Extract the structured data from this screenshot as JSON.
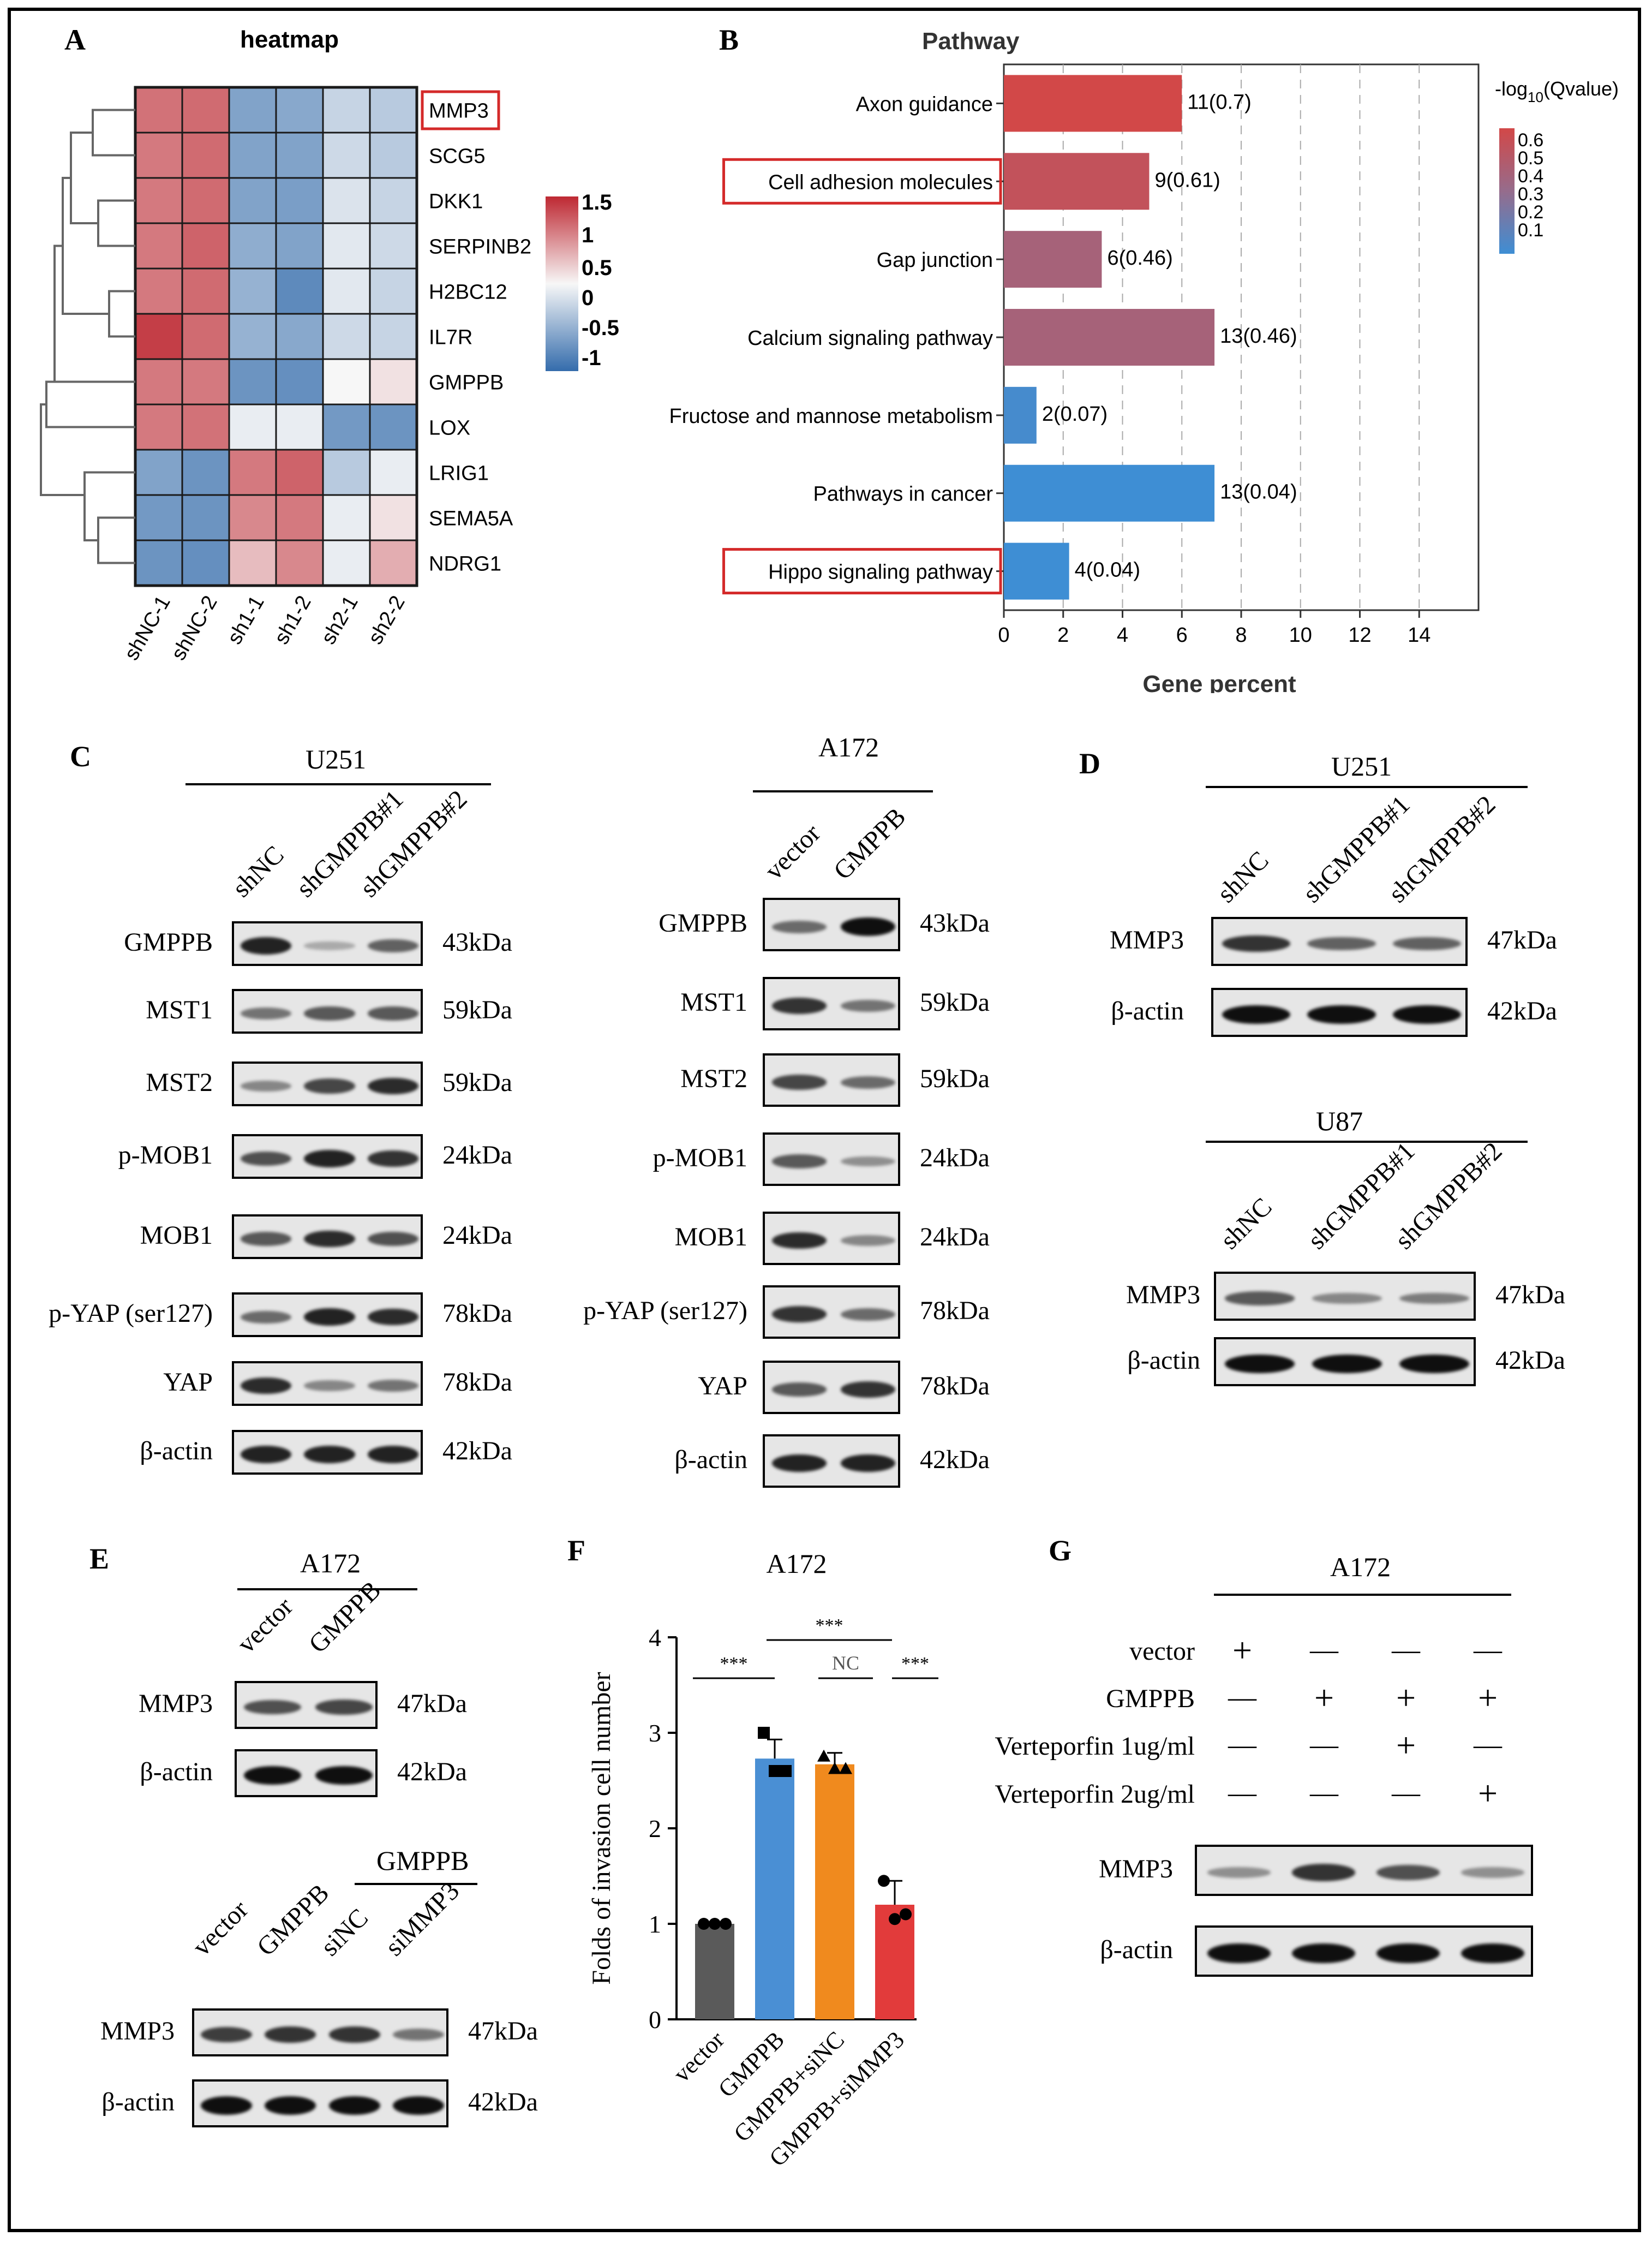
{
  "panels": {
    "A": {
      "letter": "A",
      "title": "heatmap",
      "genes": [
        "MMP3",
        "SCG5",
        "DKK1",
        "SERPINB2",
        "H2BC12",
        "IL7R",
        "GMPPB",
        "LOX",
        "LRIG1",
        "SEMA5A",
        "NDRG1"
      ],
      "samples": [
        "shNC-1",
        "shNC-2",
        "sh1-1",
        "sh1-2",
        "sh2-1",
        "sh2-2"
      ],
      "values": [
        [
          0.9,
          0.95,
          -0.85,
          -0.8,
          -0.35,
          -0.45
        ],
        [
          0.85,
          0.95,
          -0.85,
          -0.85,
          -0.3,
          -0.45
        ],
        [
          0.85,
          0.95,
          -0.85,
          -0.9,
          -0.2,
          -0.35
        ],
        [
          0.85,
          1.0,
          -0.75,
          -0.85,
          -0.15,
          -0.3
        ],
        [
          0.85,
          0.95,
          -0.7,
          -1.1,
          -0.15,
          -0.35
        ],
        [
          1.25,
          0.95,
          -0.7,
          -0.8,
          -0.3,
          -0.35
        ],
        [
          0.85,
          0.85,
          -1.0,
          -1.05,
          0.0,
          0.15
        ],
        [
          0.85,
          0.9,
          -0.1,
          -0.1,
          -0.95,
          -1.0
        ],
        [
          -0.85,
          -1.0,
          0.85,
          1.0,
          -0.45,
          -0.1
        ],
        [
          -0.95,
          -1.0,
          0.75,
          0.85,
          -0.1,
          0.15
        ],
        [
          -1.0,
          -1.05,
          0.4,
          0.75,
          -0.1,
          0.5
        ]
      ],
      "legend_ticks": [
        "1.5",
        "1",
        "0.5",
        "0",
        "-0.5",
        "-1"
      ],
      "highlight": "MMP3"
    },
    "B": {
      "letter": "B",
      "chart_data": {
        "type": "bar",
        "title": "Pathway",
        "xlabel": "Gene percent",
        "ylabel": "",
        "xlim": [
          0,
          16
        ],
        "xticks": [
          "0",
          "2",
          "4",
          "6",
          "8",
          "10",
          "12",
          "14"
        ],
        "categories": [
          "Axon guidance",
          "Cell adhesion molecules",
          "Gap junction",
          "Calcium signaling pathway",
          "Fructose and mannose metabolism",
          "Pathways in cancer",
          "Hippo signaling pathway"
        ],
        "values": [
          6.0,
          4.9,
          3.3,
          7.1,
          1.1,
          7.1,
          2.2
        ],
        "data_labels": [
          "11(0.7)",
          "9(0.61)",
          "6(0.46)",
          "13(0.46)",
          "2(0.07)",
          "13(0.04)",
          "4(0.04)"
        ],
        "qvalues": [
          0.7,
          0.61,
          0.46,
          0.46,
          0.07,
          0.04,
          0.04
        ],
        "highlighted": [
          "Cell adhesion molecules",
          "Hippo signaling pathway"
        ],
        "legend_title_prefix": "-log",
        "legend_title_sub": "10",
        "legend_title_suffix": "(Qvalue)",
        "legend_ticks": [
          "0.6",
          "0.5",
          "0.4",
          "0.3",
          "0.2",
          "0.1"
        ]
      }
    },
    "C": {
      "letter": "C",
      "left": {
        "cell": "U251",
        "lanes": [
          "shNC",
          "shGMPPB#1",
          "shGMPPB#2"
        ],
        "rows": [
          {
            "label": "GMPPB",
            "kda": "43kDa"
          },
          {
            "label": "MST1",
            "kda": "59kDa"
          },
          {
            "label": "MST2",
            "kda": "59kDa"
          },
          {
            "label": "p-MOB1",
            "kda": "24kDa"
          },
          {
            "label": "MOB1",
            "kda": "24kDa"
          },
          {
            "label": "p-YAP (ser127)",
            "kda": "78kDa"
          },
          {
            "label": "YAP",
            "kda": "78kDa"
          },
          {
            "label": "β-actin",
            "kda": "42kDa"
          }
        ]
      },
      "right": {
        "cell": "A172",
        "lanes": [
          "vector",
          "GMPPB"
        ],
        "rows": [
          {
            "label": "GMPPB",
            "kda": "43kDa"
          },
          {
            "label": "MST1",
            "kda": "59kDa"
          },
          {
            "label": "MST2",
            "kda": "59kDa"
          },
          {
            "label": "p-MOB1",
            "kda": "24kDa"
          },
          {
            "label": "MOB1",
            "kda": "24kDa"
          },
          {
            "label": "p-YAP (ser127)",
            "kda": "78kDa"
          },
          {
            "label": "YAP",
            "kda": "78kDa"
          },
          {
            "label": "β-actin",
            "kda": "42kDa"
          }
        ]
      }
    },
    "D": {
      "letter": "D",
      "top": {
        "cell": "U251",
        "lanes": [
          "shNC",
          "shGMPPB#1",
          "shGMPPB#2"
        ],
        "rows": [
          {
            "label": "MMP3",
            "kda": "47kDa"
          },
          {
            "label": "β-actin",
            "kda": "42kDa"
          }
        ]
      },
      "bottom": {
        "cell": "U87",
        "lanes": [
          "shNC",
          "shGMPPB#1",
          "shGMPPB#2"
        ],
        "rows": [
          {
            "label": "MMP3",
            "kda": "47kDa"
          },
          {
            "label": "β-actin",
            "kda": "42kDa"
          }
        ]
      }
    },
    "E": {
      "letter": "E",
      "top": {
        "cell": "A172",
        "lanes": [
          "vector",
          "GMPPB"
        ],
        "rows": [
          {
            "label": "MMP3",
            "kda": "47kDa"
          },
          {
            "label": "β-actin",
            "kda": "42kDa"
          }
        ]
      },
      "bottom": {
        "group": "GMPPB",
        "lanes": [
          "vector",
          "GMPPB",
          "siNC",
          "siMMP3"
        ],
        "rows": [
          {
            "label": "MMP3",
            "kda": "47kDa"
          },
          {
            "label": "β-actin",
            "kda": "42kDa"
          }
        ]
      }
    },
    "F": {
      "letter": "F",
      "chart_data": {
        "type": "bar",
        "title": "A172",
        "ylabel": "Folds of invasion cell number",
        "xlabel": "",
        "ylim": [
          0,
          4
        ],
        "yticks": [
          "0",
          "1",
          "2",
          "3",
          "4"
        ],
        "categories": [
          "vector",
          "GMPPB",
          "GMPPB+siNC",
          "GMPPB+siMMP3"
        ],
        "values": [
          1.0,
          2.73,
          2.67,
          1.2
        ],
        "errors": [
          0.0,
          0.2,
          0.12,
          0.25
        ],
        "points": [
          [
            1.0,
            1.0,
            1.0
          ],
          [
            3.0,
            2.6,
            2.6
          ],
          [
            2.75,
            2.62,
            2.62
          ],
          [
            1.45,
            1.05,
            1.1
          ]
        ],
        "colors": [
          "#5a5a5a",
          "#4a8fd4",
          "#f08a1e",
          "#e23b3b"
        ],
        "significance": [
          {
            "from": "vector",
            "to": "GMPPB",
            "label": "***"
          },
          {
            "from": "GMPPB",
            "to": "GMPPB+siNC",
            "label": "NC"
          },
          {
            "from": "GMPPB+siNC",
            "to": "GMPPB+siMMP3",
            "label": "***"
          },
          {
            "from": "GMPPB",
            "to": "GMPPB+siMMP3",
            "label": "***"
          }
        ]
      }
    },
    "G": {
      "letter": "G",
      "cell": "A172",
      "conditions": [
        {
          "label": "vector",
          "marks": [
            "+",
            "—",
            "—",
            "—"
          ]
        },
        {
          "label": "GMPPB",
          "marks": [
            "—",
            "+",
            "+",
            "+"
          ]
        },
        {
          "label": "Verteporfin 1ug/ml",
          "marks": [
            "—",
            "—",
            "+",
            "—"
          ]
        },
        {
          "label": "Verteporfin 2ug/ml",
          "marks": [
            "—",
            "—",
            "—",
            "+"
          ]
        }
      ],
      "rows": [
        {
          "label": "MMP3"
        },
        {
          "label": "β-actin"
        }
      ]
    }
  }
}
